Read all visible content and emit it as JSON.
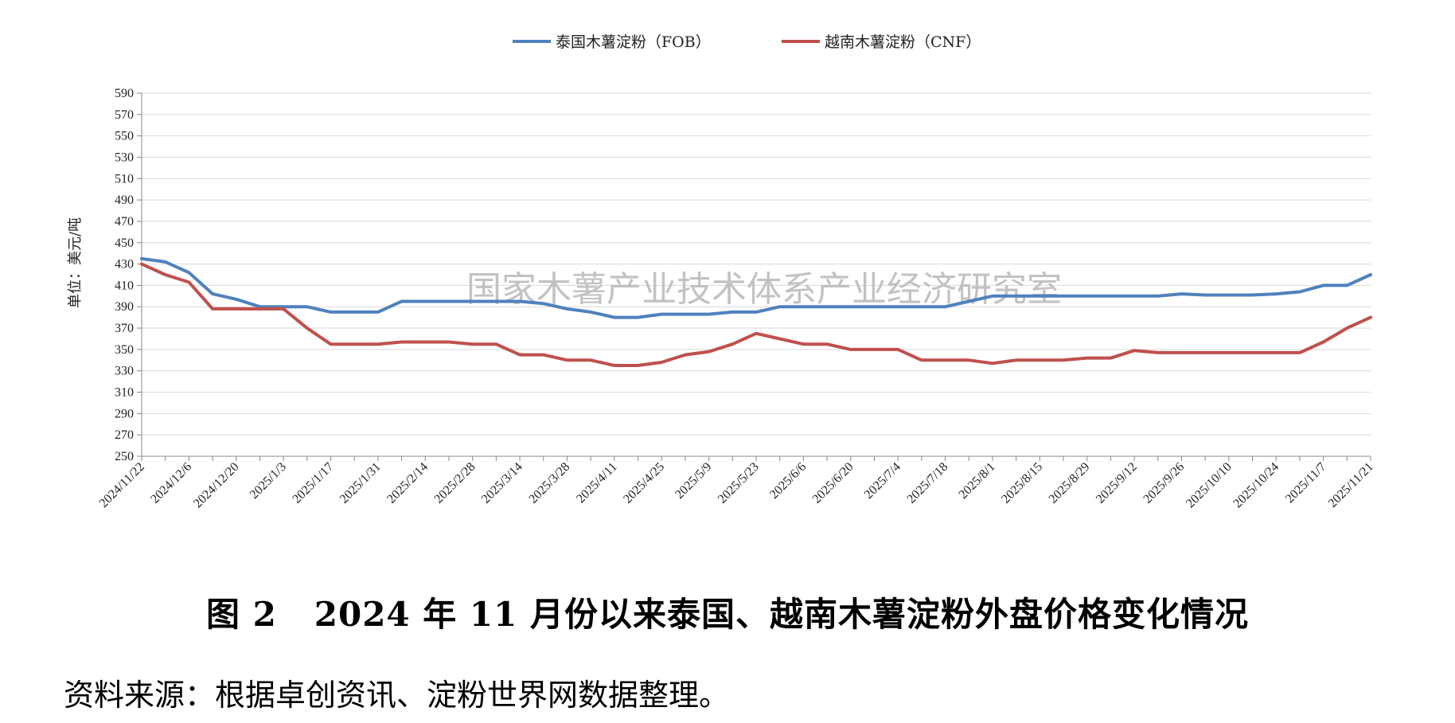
{
  "chart_data": {
    "type": "line",
    "watermark": "国家木薯产业技术体系产业经济研究室",
    "ylabel": "单位：美元/吨",
    "ylim": [
      250,
      590
    ],
    "yticks": [
      250,
      270,
      290,
      310,
      330,
      350,
      370,
      390,
      410,
      430,
      450,
      470,
      490,
      510,
      530,
      550,
      570,
      590
    ],
    "grid": true,
    "legend_position": "top-center",
    "x_tick_labels": [
      "2024/11/22",
      "2024/12/6",
      "2024/12/20",
      "2025/1/3",
      "2025/1/17",
      "2025/1/31",
      "2025/2/14",
      "2025/2/28",
      "2025/3/14",
      "2025/3/28",
      "2025/4/11",
      "2025/4/25",
      "2025/5/9",
      "2025/5/23",
      "2025/6/6",
      "2025/6/20",
      "2025/7/4",
      "2025/7/18",
      "2025/8/1",
      "2025/8/15",
      "2025/8/29",
      "2025/9/12",
      "2025/9/26",
      "2025/10/10",
      "2025/10/24",
      "2025/11/7",
      "2025/11/21"
    ],
    "x": [
      "2024/11/22",
      "2024/11/29",
      "2024/12/6",
      "2024/12/13",
      "2024/12/20",
      "2024/12/27",
      "2025/1/3",
      "2025/1/10",
      "2025/1/17",
      "2025/1/24",
      "2025/1/31",
      "2025/2/7",
      "2025/2/14",
      "2025/2/21",
      "2025/2/28",
      "2025/3/7",
      "2025/3/14",
      "2025/3/21",
      "2025/3/28",
      "2025/4/4",
      "2025/4/11",
      "2025/4/18",
      "2025/4/25",
      "2025/5/2",
      "2025/5/9",
      "2025/5/16",
      "2025/5/23",
      "2025/5/30",
      "2025/6/6",
      "2025/6/13",
      "2025/6/20",
      "2025/6/27",
      "2025/7/4",
      "2025/7/11",
      "2025/7/18",
      "2025/7/25",
      "2025/8/1",
      "2025/8/8",
      "2025/8/15",
      "2025/8/22",
      "2025/8/29",
      "2025/9/5",
      "2025/9/12",
      "2025/9/19",
      "2025/9/26",
      "2025/10/3",
      "2025/10/10",
      "2025/10/17",
      "2025/10/24",
      "2025/10/31",
      "2025/11/7",
      "2025/11/14",
      "2025/11/21"
    ],
    "series": [
      {
        "name": "泰国木薯淀粉（FOB）",
        "color": "#4f81bd",
        "values": [
          435,
          432,
          422,
          402,
          397,
          390,
          390,
          390,
          385,
          385,
          385,
          395,
          395,
          395,
          395,
          395,
          395,
          393,
          388,
          385,
          380,
          380,
          383,
          383,
          383,
          385,
          385,
          390,
          390,
          390,
          390,
          390,
          390,
          390,
          390,
          395,
          400,
          400,
          400,
          400,
          400,
          400,
          400,
          400,
          402,
          401,
          401,
          401,
          402,
          404,
          410,
          410,
          420
        ]
      },
      {
        "name": "越南木薯淀粉（CNF）",
        "color": "#c0504d",
        "values": [
          430,
          420,
          413,
          388,
          388,
          388,
          388,
          370,
          355,
          355,
          355,
          357,
          357,
          357,
          355,
          355,
          345,
          345,
          340,
          340,
          335,
          335,
          338,
          345,
          348,
          355,
          365,
          360,
          355,
          355,
          350,
          350,
          350,
          340,
          340,
          340,
          337,
          340,
          340,
          340,
          342,
          342,
          349,
          347,
          347,
          347,
          347,
          347,
          347,
          347,
          357,
          370,
          380
        ]
      }
    ]
  },
  "caption": "图 2   2024 年 11 月份以来泰国、越南木薯淀粉外盘价格变化情况",
  "source": "资料来源：根据卓创资讯、淀粉世界网数据整理。"
}
